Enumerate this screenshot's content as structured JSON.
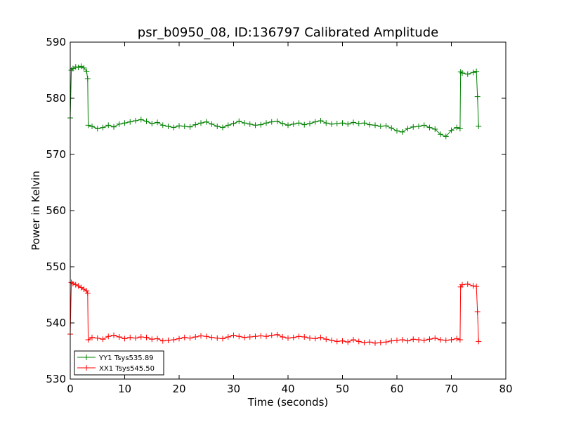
{
  "chart_data": {
    "type": "line",
    "title": "psr_b0950_08, ID:136797 Calibrated Amplitude",
    "xlabel": "Time (seconds)",
    "ylabel": "Power in Kelvin",
    "xlim": [
      0,
      80
    ],
    "ylim": [
      530,
      590
    ],
    "xticks": [
      0,
      10,
      20,
      30,
      40,
      50,
      60,
      70,
      80
    ],
    "yticks": [
      530,
      540,
      550,
      560,
      570,
      580,
      590
    ],
    "grid": false,
    "legend_position": "bottom-left",
    "series": [
      {
        "name": "YY1 Tsys535.89",
        "color": "#008000",
        "marker": "+",
        "x": [
          0.0,
          0.2,
          0.5,
          1.0,
          1.5,
          2.0,
          2.5,
          3.0,
          3.2,
          3.3,
          4.0,
          5.0,
          6.0,
          7.0,
          8.0,
          9.0,
          10.0,
          11.0,
          12.0,
          13.0,
          14.0,
          15.0,
          16.0,
          17.0,
          18.0,
          19.0,
          20.0,
          21.0,
          22.0,
          23.0,
          24.0,
          25.0,
          26.0,
          27.0,
          28.0,
          29.0,
          30.0,
          31.0,
          32.0,
          33.0,
          34.0,
          35.0,
          36.0,
          37.0,
          38.0,
          39.0,
          40.0,
          41.0,
          42.0,
          43.0,
          44.0,
          45.0,
          46.0,
          47.0,
          48.0,
          49.0,
          50.0,
          51.0,
          52.0,
          53.0,
          54.0,
          55.0,
          56.0,
          57.0,
          58.0,
          59.0,
          60.0,
          61.0,
          62.0,
          63.0,
          64.0,
          65.0,
          66.0,
          67.0,
          68.0,
          69.0,
          70.0,
          71.0,
          71.6,
          71.7,
          72.0,
          73.0,
          74.0,
          74.6,
          74.8,
          75.0
        ],
        "y": [
          576.5,
          585.0,
          585.3,
          585.6,
          585.5,
          585.7,
          585.4,
          584.8,
          583.5,
          575.2,
          575.0,
          574.6,
          574.8,
          575.2,
          574.9,
          575.4,
          575.6,
          575.8,
          576.0,
          576.2,
          575.9,
          575.5,
          575.7,
          575.2,
          575.0,
          574.8,
          575.1,
          575.0,
          574.9,
          575.3,
          575.6,
          575.8,
          575.4,
          575.0,
          574.8,
          575.2,
          575.5,
          575.9,
          575.6,
          575.4,
          575.2,
          575.3,
          575.6,
          575.8,
          575.9,
          575.5,
          575.2,
          575.4,
          575.6,
          575.3,
          575.5,
          575.8,
          576.0,
          575.6,
          575.4,
          575.5,
          575.6,
          575.4,
          575.7,
          575.5,
          575.6,
          575.3,
          575.2,
          575.0,
          575.1,
          574.7,
          574.2,
          574.0,
          574.6,
          574.9,
          575.0,
          575.2,
          574.8,
          574.5,
          573.6,
          573.2,
          574.3,
          574.8,
          574.6,
          584.7,
          584.5,
          584.3,
          584.6,
          584.8,
          580.3,
          575.0
        ]
      },
      {
        "name": "XX1 Tsys545.50",
        "color": "#ff0000",
        "marker": "+",
        "x": [
          0.0,
          0.2,
          0.5,
          1.0,
          1.5,
          2.0,
          2.5,
          3.0,
          3.2,
          3.3,
          4.0,
          5.0,
          6.0,
          7.0,
          8.0,
          9.0,
          10.0,
          11.0,
          12.0,
          13.0,
          14.0,
          15.0,
          16.0,
          17.0,
          18.0,
          19.0,
          20.0,
          21.0,
          22.0,
          23.0,
          24.0,
          25.0,
          26.0,
          27.0,
          28.0,
          29.0,
          30.0,
          31.0,
          32.0,
          33.0,
          34.0,
          35.0,
          36.0,
          37.0,
          38.0,
          39.0,
          40.0,
          41.0,
          42.0,
          43.0,
          44.0,
          45.0,
          46.0,
          47.0,
          48.0,
          49.0,
          50.0,
          51.0,
          52.0,
          53.0,
          54.0,
          55.0,
          56.0,
          57.0,
          58.0,
          59.0,
          60.0,
          61.0,
          62.0,
          63.0,
          64.0,
          65.0,
          66.0,
          67.0,
          68.0,
          69.0,
          70.0,
          71.0,
          71.6,
          71.7,
          72.0,
          73.0,
          74.0,
          74.6,
          74.8,
          75.0
        ],
        "y": [
          538.0,
          547.2,
          547.0,
          546.8,
          546.6,
          546.3,
          546.0,
          545.7,
          545.3,
          537.0,
          537.4,
          537.3,
          537.1,
          537.6,
          537.8,
          537.5,
          537.2,
          537.4,
          537.3,
          537.5,
          537.4,
          537.1,
          537.2,
          536.8,
          536.9,
          537.0,
          537.2,
          537.4,
          537.3,
          537.5,
          537.7,
          537.6,
          537.4,
          537.3,
          537.2,
          537.5,
          537.8,
          537.6,
          537.4,
          537.5,
          537.6,
          537.7,
          537.6,
          537.8,
          537.9,
          537.5,
          537.3,
          537.4,
          537.6,
          537.5,
          537.3,
          537.2,
          537.4,
          537.1,
          536.9,
          536.7,
          536.8,
          536.6,
          537.0,
          536.7,
          536.5,
          536.6,
          536.4,
          536.5,
          536.6,
          536.8,
          536.9,
          537.0,
          536.8,
          537.1,
          537.0,
          536.9,
          537.1,
          537.3,
          537.0,
          536.9,
          537.0,
          537.2,
          537.0,
          546.4,
          546.8,
          546.9,
          546.6,
          546.5,
          542.0,
          536.7
        ]
      }
    ]
  }
}
